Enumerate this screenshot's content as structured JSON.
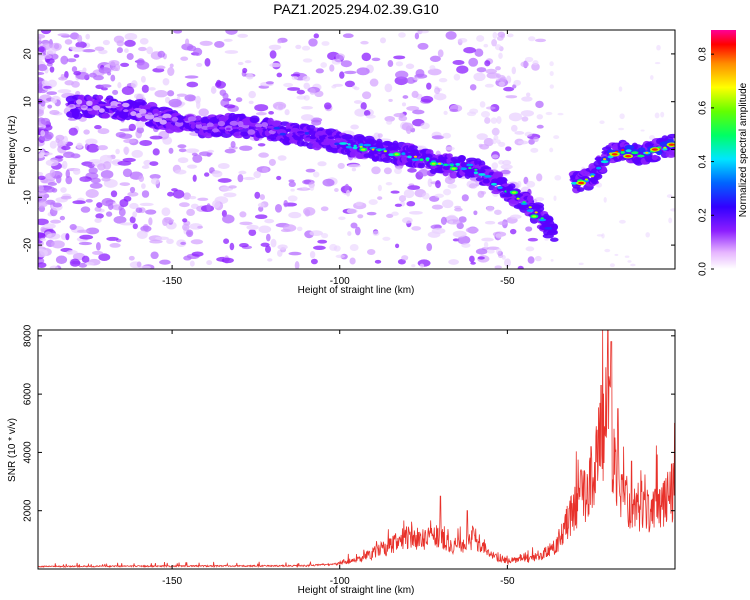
{
  "title": "PAZ1.2025.294.02.39.G10",
  "chart_data": [
    {
      "type": "heatmap",
      "name": "spectrogram",
      "xlabel": "Height of straight line (km)",
      "ylabel": "Frequency (Hz)",
      "xlim": [
        -190,
        0
      ],
      "ylim": [
        -25,
        25
      ],
      "xticks": [
        -150,
        -100,
        -50
      ],
      "xtick_labels": [
        "-150",
        "-100",
        "-50"
      ],
      "yticks": [
        -20,
        -10,
        0,
        10,
        20
      ],
      "ytick_labels": [
        "-20",
        "-10",
        "0",
        "10",
        "20"
      ],
      "colorbar": {
        "label": "Normalized spectral amplitude",
        "range": [
          0.0,
          0.89
        ],
        "ticks": [
          0.0,
          0.2,
          0.4,
          0.6,
          0.8
        ],
        "tick_labels": [
          "0.0",
          "0.2",
          "0.4",
          "0.6",
          "0.8"
        ]
      },
      "main_track": [
        [
          -180,
          9
        ],
        [
          -170,
          9
        ],
        [
          -160,
          8
        ],
        [
          -150,
          6
        ],
        [
          -140,
          5
        ],
        [
          -130,
          5
        ],
        [
          -120,
          4
        ],
        [
          -110,
          3
        ],
        [
          -100,
          1.5
        ],
        [
          -90,
          0
        ],
        [
          -80,
          -1
        ],
        [
          -70,
          -3
        ],
        [
          -60,
          -4
        ],
        [
          -55,
          -6
        ],
        [
          -50,
          -9
        ],
        [
          -45,
          -11
        ],
        [
          -40,
          -14
        ],
        [
          -36,
          -18
        ],
        [
          -30,
          -7
        ],
        [
          -25,
          -6
        ],
        [
          -20,
          -1
        ],
        [
          -15,
          0
        ],
        [
          -10,
          -1
        ],
        [
          -5,
          0
        ],
        [
          0,
          1
        ]
      ]
    },
    {
      "type": "line",
      "name": "snr",
      "xlabel": "Height of straight line (km)",
      "ylabel": "SNR (10 * v/v)",
      "xlim": [
        -190,
        0
      ],
      "ylim": [
        0,
        8200
      ],
      "xticks": [
        -150,
        -100,
        -50
      ],
      "xtick_labels": [
        "-150",
        "-100",
        "-50"
      ],
      "yticks": [
        2000,
        4000,
        6000,
        8000
      ],
      "ytick_labels": [
        "2000",
        "4000",
        "6000",
        "8000"
      ],
      "color": "#e8312a",
      "envelope": [
        [
          -190,
          120
        ],
        [
          -110,
          150
        ],
        [
          -100,
          250
        ],
        [
          -95,
          350
        ],
        [
          -90,
          600
        ],
        [
          -85,
          900
        ],
        [
          -80,
          1200
        ],
        [
          -75,
          1100
        ],
        [
          -70,
          1300
        ],
        [
          -65,
          800
        ],
        [
          -60,
          1200
        ],
        [
          -55,
          600
        ],
        [
          -50,
          300
        ],
        [
          -45,
          350
        ],
        [
          -40,
          500
        ],
        [
          -35,
          900
        ],
        [
          -30,
          2400
        ],
        [
          -25,
          3200
        ],
        [
          -22,
          5000
        ],
        [
          -20,
          5500
        ],
        [
          -18,
          4200
        ],
        [
          -16,
          2800
        ],
        [
          -13,
          2300
        ],
        [
          -10,
          2200
        ],
        [
          -5,
          2400
        ],
        [
          0,
          2900
        ]
      ],
      "peaks": [
        [
          -70,
          2500
        ],
        [
          -62,
          2000
        ],
        [
          -28,
          3400
        ],
        [
          -25,
          4200
        ],
        [
          -22,
          6300
        ],
        [
          -20,
          8200
        ],
        [
          -19,
          7800
        ],
        [
          -17,
          5500
        ],
        [
          -13,
          3700
        ],
        [
          -1,
          3600
        ]
      ]
    }
  ]
}
